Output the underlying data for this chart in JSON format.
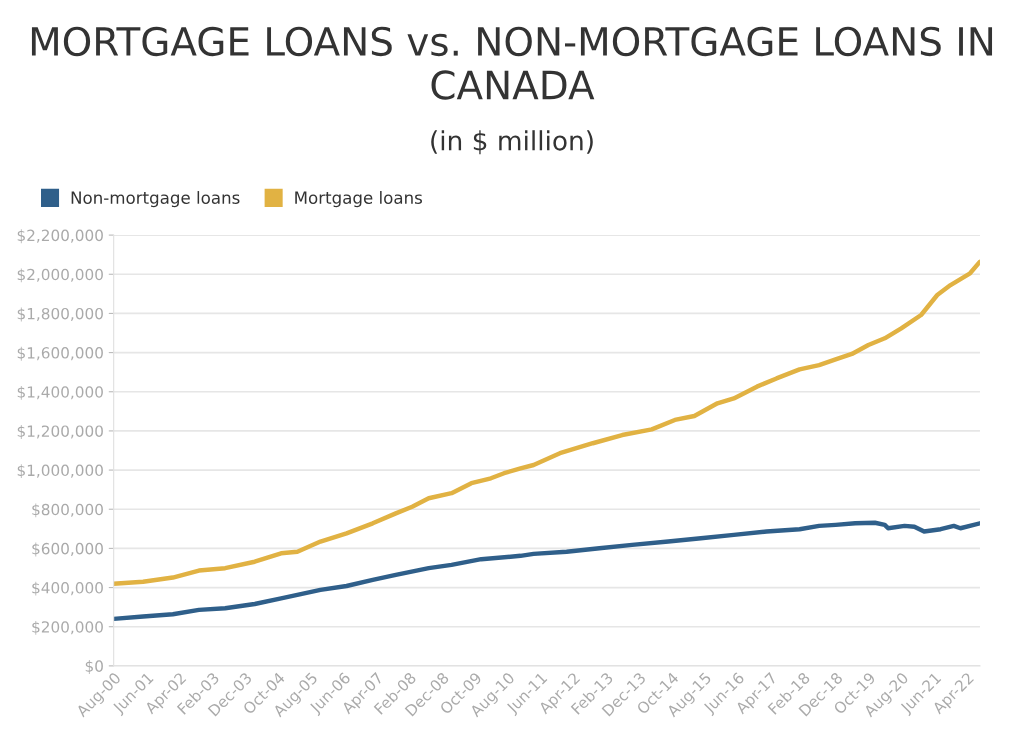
{
  "chart_data": {
    "type": "line",
    "title": "MORTGAGE LOANS vs. NON-MORTGAGE LOANS IN CANADA",
    "subtitle": "(in $ million)",
    "legend": "top left",
    "grid": "y",
    "marker": "none",
    "line_style": "solid",
    "ylim": [
      0,
      2200000
    ],
    "yticks": [
      {
        "value": 0,
        "label": "$0"
      },
      {
        "value": 200000,
        "label": "$200,000"
      },
      {
        "value": 400000,
        "label": "$400,000"
      },
      {
        "value": 600000,
        "label": "$600,000"
      },
      {
        "value": 800000,
        "label": "$800,000"
      },
      {
        "value": 1000000,
        "label": "$1,000,000"
      },
      {
        "value": 1200000,
        "label": "$1,200,000"
      },
      {
        "value": 1400000,
        "label": "$1,400,000"
      },
      {
        "value": 1600000,
        "label": "$1,600,000"
      },
      {
        "value": 1800000,
        "label": "$1,800,000"
      },
      {
        "value": 2000000,
        "label": "$2,000,000"
      },
      {
        "value": 2200000,
        "label": "$2,200,000"
      }
    ],
    "xlim": [
      "2000-08",
      "2022-08"
    ],
    "xticks": [
      {
        "value": "2000-08",
        "label": "Aug-00"
      },
      {
        "value": "2001-06",
        "label": "Jun-01"
      },
      {
        "value": "2002-04",
        "label": "Apr-02"
      },
      {
        "value": "2003-02",
        "label": "Feb-03"
      },
      {
        "value": "2003-12",
        "label": "Dec-03"
      },
      {
        "value": "2004-10",
        "label": "Oct-04"
      },
      {
        "value": "2005-08",
        "label": "Aug-05"
      },
      {
        "value": "2006-06",
        "label": "Jun-06"
      },
      {
        "value": "2007-04",
        "label": "Apr-07"
      },
      {
        "value": "2008-02",
        "label": "Feb-08"
      },
      {
        "value": "2008-12",
        "label": "Dec-08"
      },
      {
        "value": "2009-10",
        "label": "Oct-09"
      },
      {
        "value": "2010-08",
        "label": "Aug-10"
      },
      {
        "value": "2011-06",
        "label": "Jun-11"
      },
      {
        "value": "2012-04",
        "label": "Apr-12"
      },
      {
        "value": "2013-02",
        "label": "Feb-13"
      },
      {
        "value": "2013-12",
        "label": "Dec-13"
      },
      {
        "value": "2014-10",
        "label": "Oct-14"
      },
      {
        "value": "2015-08",
        "label": "Aug-15"
      },
      {
        "value": "2016-06",
        "label": "Jun-16"
      },
      {
        "value": "2017-04",
        "label": "Apr-17"
      },
      {
        "value": "2018-02",
        "label": "Feb-18"
      },
      {
        "value": "2018-12",
        "label": "Dec-18"
      },
      {
        "value": "2019-10",
        "label": "Oct-19"
      },
      {
        "value": "2020-08",
        "label": "Aug-20"
      },
      {
        "value": "2021-06",
        "label": "Jun-21"
      },
      {
        "value": "2022-04",
        "label": "Apr-22"
      }
    ],
    "series": [
      {
        "name": "Non-mortgage loans",
        "color": "#2f5f8a",
        "x": [
          "2000-08",
          "2001-05",
          "2002-02",
          "2002-10",
          "2003-06",
          "2004-03",
          "2004-11",
          "2005-11",
          "2006-07",
          "2007-03",
          "2007-10",
          "2008-08",
          "2009-03",
          "2009-12",
          "2010-12",
          "2011-04",
          "2012-02",
          "2012-12",
          "2013-10",
          "2014-09",
          "2015-07",
          "2016-05",
          "2017-03",
          "2018-01",
          "2018-07",
          "2018-12",
          "2019-06",
          "2019-12",
          "2020-03",
          "2020-04",
          "2020-09",
          "2020-12",
          "2021-03",
          "2021-08",
          "2021-12",
          "2022-02",
          "2022-08"
        ],
        "values": [
          240000,
          252000,
          264000,
          286000,
          294000,
          316000,
          345000,
          388000,
          408000,
          439000,
          465000,
          499000,
          516000,
          545000,
          562000,
          572000,
          583000,
          601000,
          618000,
          635000,
          652000,
          669000,
          686000,
          698000,
          715000,
          720000,
          728000,
          731000,
          720000,
          703000,
          715000,
          711000,
          686000,
          698000,
          715000,
          703000,
          728000
        ]
      },
      {
        "name": "Mortgage loans",
        "color": "#e1b243",
        "x": [
          "2000-08",
          "2001-05",
          "2002-02",
          "2002-10",
          "2003-06",
          "2004-03",
          "2004-11",
          "2005-04",
          "2005-11",
          "2006-07",
          "2007-03",
          "2007-10",
          "2008-03",
          "2008-08",
          "2009-03",
          "2009-09",
          "2010-03",
          "2010-07",
          "2010-12",
          "2011-04",
          "2011-12",
          "2012-10",
          "2013-07",
          "2014-04",
          "2014-11",
          "2015-05",
          "2015-12",
          "2016-05",
          "2016-12",
          "2017-06",
          "2018-01",
          "2018-07",
          "2018-12",
          "2019-05",
          "2019-10",
          "2020-03",
          "2020-08",
          "2021-02",
          "2021-07",
          "2021-11",
          "2022-05",
          "2022-08"
        ],
        "values": [
          419000,
          430000,
          451000,
          487000,
          499000,
          532000,
          575000,
          583000,
          635000,
          677000,
          728000,
          779000,
          813000,
          856000,
          882000,
          933000,
          958000,
          984000,
          1009000,
          1026000,
          1086000,
          1137000,
          1179000,
          1208000,
          1256000,
          1276000,
          1341000,
          1366000,
          1426000,
          1468000,
          1514000,
          1536000,
          1565000,
          1593000,
          1639000,
          1673000,
          1724000,
          1792000,
          1894000,
          1945000,
          2005000,
          2064000
        ]
      }
    ]
  }
}
